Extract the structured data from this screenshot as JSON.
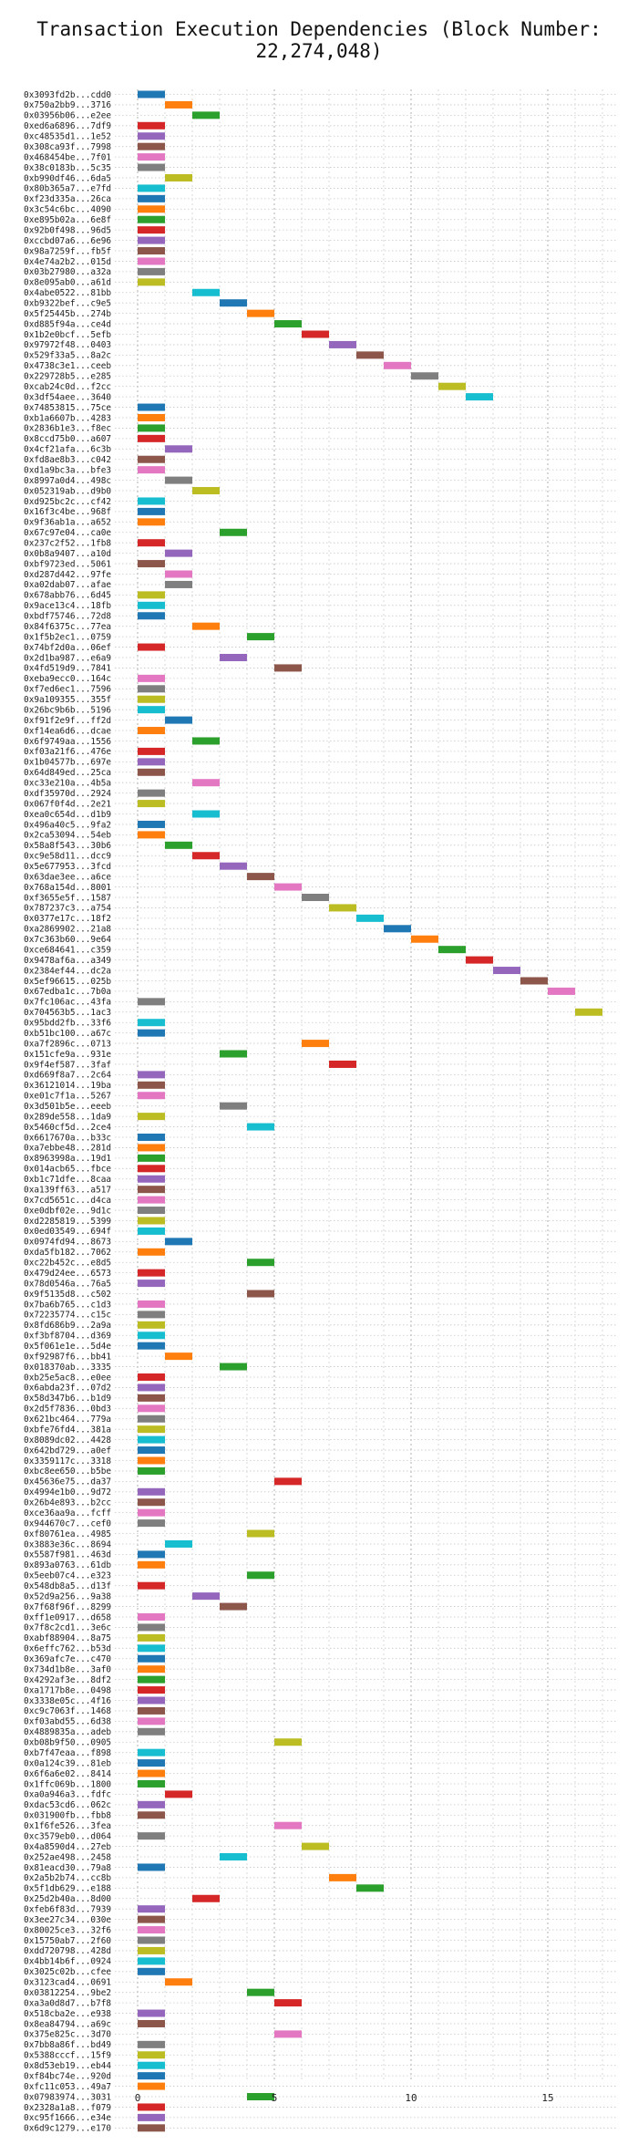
{
  "chart_data": {
    "type": "bar",
    "title": "Transaction Execution Dependencies (Block Number: 22,274,048)",
    "xlabel": "",
    "ylabel": "",
    "xlim": [
      -1.2,
      18.3
    ],
    "xticks": [
      0,
      5,
      10,
      15
    ],
    "grid": true,
    "palette": [
      "#1f77b4",
      "#ff7f0e",
      "#2ca02c",
      "#d62728",
      "#9467bd",
      "#8c564b",
      "#e377c2",
      "#7f7f7f",
      "#bcbd22",
      "#17becf"
    ],
    "transactions": [
      {
        "label": "0x3093fd2b...cdd0",
        "start": 0,
        "color": 0
      },
      {
        "label": "0x750a2bb9...3716",
        "start": 1,
        "color": 1
      },
      {
        "label": "0x03956b06...e2ee",
        "start": 2,
        "color": 2
      },
      {
        "label": "0xed6a6896...7df9",
        "start": 0,
        "color": 3
      },
      {
        "label": "0xc48535d1...1e52",
        "start": 0,
        "color": 4
      },
      {
        "label": "0x308ca93f...7998",
        "start": 0,
        "color": 5
      },
      {
        "label": "0x468454be...7f01",
        "start": 0,
        "color": 6
      },
      {
        "label": "0x38c0183b...5c35",
        "start": 0,
        "color": 7
      },
      {
        "label": "0xb990df46...6da5",
        "start": 1,
        "color": 8
      },
      {
        "label": "0x80b365a7...e7fd",
        "start": 0,
        "color": 9
      },
      {
        "label": "0xf23d335a...26ca",
        "start": 0,
        "color": 0
      },
      {
        "label": "0x3c54c6bc...4090",
        "start": 0,
        "color": 1
      },
      {
        "label": "0xe895b02a...6e8f",
        "start": 0,
        "color": 2
      },
      {
        "label": "0x92b0f498...96d5",
        "start": 0,
        "color": 3
      },
      {
        "label": "0xccbd07a6...6e96",
        "start": 0,
        "color": 4
      },
      {
        "label": "0x98a7259f...fb5f",
        "start": 0,
        "color": 5
      },
      {
        "label": "0x4e74a2b2...015d",
        "start": 0,
        "color": 6
      },
      {
        "label": "0x03b27980...a32a",
        "start": 0,
        "color": 7
      },
      {
        "label": "0x8e095ab0...a61d",
        "start": 0,
        "color": 8
      },
      {
        "label": "0x4abe0522...81bb",
        "start": 2,
        "color": 9
      },
      {
        "label": "0xb9322bef...c9e5",
        "start": 3,
        "color": 0
      },
      {
        "label": "0x5f25445b...274b",
        "start": 4,
        "color": 1
      },
      {
        "label": "0xd885f94a...ce4d",
        "start": 5,
        "color": 2
      },
      {
        "label": "0x1b2e0bcf...5efb",
        "start": 6,
        "color": 3
      },
      {
        "label": "0x97972f48...0403",
        "start": 7,
        "color": 4
      },
      {
        "label": "0x529f33a5...8a2c",
        "start": 8,
        "color": 5
      },
      {
        "label": "0x4738c3e1...ceeb",
        "start": 9,
        "color": 6
      },
      {
        "label": "0x229728b5...e285",
        "start": 10,
        "color": 7
      },
      {
        "label": "0xcab24c0d...f2cc",
        "start": 11,
        "color": 8
      },
      {
        "label": "0x3df54aee...3640",
        "start": 12,
        "color": 9
      },
      {
        "label": "0x74853815...75ce",
        "start": 0,
        "color": 0
      },
      {
        "label": "0xb1a6607b...4283",
        "start": 0,
        "color": 1
      },
      {
        "label": "0x2836b1e3...f8ec",
        "start": 0,
        "color": 2
      },
      {
        "label": "0x8ccd75b0...a607",
        "start": 0,
        "color": 3
      },
      {
        "label": "0x4cf21afa...6c3b",
        "start": 1,
        "color": 4
      },
      {
        "label": "0xfd8ae8b3...c042",
        "start": 0,
        "color": 5
      },
      {
        "label": "0xd1a9bc3a...bfe3",
        "start": 0,
        "color": 6
      },
      {
        "label": "0x8997a0d4...498c",
        "start": 1,
        "color": 7
      },
      {
        "label": "0x052319ab...d9b0",
        "start": 2,
        "color": 8
      },
      {
        "label": "0xd925bc2c...cf42",
        "start": 0,
        "color": 9
      },
      {
        "label": "0x16f3c4be...968f",
        "start": 0,
        "color": 0
      },
      {
        "label": "0x9f36ab1a...a652",
        "start": 0,
        "color": 1
      },
      {
        "label": "0x67c97e04...ca0e",
        "start": 3,
        "color": 2
      },
      {
        "label": "0x237c2f52...1fb8",
        "start": 0,
        "color": 3
      },
      {
        "label": "0x0b8a9407...a10d",
        "start": 1,
        "color": 4
      },
      {
        "label": "0xbf9723ed...5061",
        "start": 0,
        "color": 5
      },
      {
        "label": "0xd287d442...97fe",
        "start": 1,
        "color": 6
      },
      {
        "label": "0xa02dab07...afae",
        "start": 1,
        "color": 7
      },
      {
        "label": "0x678abb76...6d45",
        "start": 0,
        "color": 8
      },
      {
        "label": "0x9ace13c4...18fb",
        "start": 0,
        "color": 9
      },
      {
        "label": "0xbdf75746...72d8",
        "start": 0,
        "color": 0
      },
      {
        "label": "0x84f6375c...77ea",
        "start": 2,
        "color": 1
      },
      {
        "label": "0x1f5b2ec1...0759",
        "start": 4,
        "color": 2
      },
      {
        "label": "0x74bf2d0a...06ef",
        "start": 0,
        "color": 3
      },
      {
        "label": "0x2d1ba987...e6a9",
        "start": 3,
        "color": 4
      },
      {
        "label": "0x4fd519d9...7841",
        "start": 5,
        "color": 5
      },
      {
        "label": "0xeba9ecc0...164c",
        "start": 0,
        "color": 6
      },
      {
        "label": "0xf7ed6ec1...7596",
        "start": 0,
        "color": 7
      },
      {
        "label": "0x9a109355...355f",
        "start": 0,
        "color": 8
      },
      {
        "label": "0x26bc9b6b...5196",
        "start": 0,
        "color": 9
      },
      {
        "label": "0xf91f2e9f...ff2d",
        "start": 1,
        "color": 0
      },
      {
        "label": "0xf14ea6d6...dcae",
        "start": 0,
        "color": 1
      },
      {
        "label": "0x6f9749aa...1556",
        "start": 2,
        "color": 2
      },
      {
        "label": "0xf03a21f6...476e",
        "start": 0,
        "color": 3
      },
      {
        "label": "0x1b04577b...697e",
        "start": 0,
        "color": 4
      },
      {
        "label": "0x64d849ed...25ca",
        "start": 0,
        "color": 5
      },
      {
        "label": "0xc33e210a...4b5a",
        "start": 2,
        "color": 6
      },
      {
        "label": "0xdf35970d...2924",
        "start": 0,
        "color": 7
      },
      {
        "label": "0x067f0f4d...2e21",
        "start": 0,
        "color": 8
      },
      {
        "label": "0xea0c654d...d1b9",
        "start": 2,
        "color": 9
      },
      {
        "label": "0x496a40c5...9fa2",
        "start": 0,
        "color": 0
      },
      {
        "label": "0x2ca53094...54eb",
        "start": 0,
        "color": 1
      },
      {
        "label": "0x58a8f543...30b6",
        "start": 1,
        "color": 2
      },
      {
        "label": "0xc9e58d11...dcc9",
        "start": 2,
        "color": 3
      },
      {
        "label": "0x5e677953...3fcd",
        "start": 3,
        "color": 4
      },
      {
        "label": "0x63dae3ee...a6ce",
        "start": 4,
        "color": 5
      },
      {
        "label": "0x768a154d...8001",
        "start": 5,
        "color": 6
      },
      {
        "label": "0xf3655e5f...1587",
        "start": 6,
        "color": 7
      },
      {
        "label": "0x787237c3...a754",
        "start": 7,
        "color": 8
      },
      {
        "label": "0x0377e17c...18f2",
        "start": 8,
        "color": 9
      },
      {
        "label": "0xa2869902...21a8",
        "start": 9,
        "color": 0
      },
      {
        "label": "0x7c363b60...9e64",
        "start": 10,
        "color": 1
      },
      {
        "label": "0xce684641...c359",
        "start": 11,
        "color": 2
      },
      {
        "label": "0x9478af6a...a349",
        "start": 12,
        "color": 3
      },
      {
        "label": "0x2384ef44...dc2a",
        "start": 13,
        "color": 4
      },
      {
        "label": "0x5ef96615...025b",
        "start": 14,
        "color": 5
      },
      {
        "label": "0x67edba1c...7b0a",
        "start": 15,
        "color": 6
      },
      {
        "label": "0x7fc106ac...43fa",
        "start": 0,
        "color": 7
      },
      {
        "label": "0x704563b5...1ac3",
        "start": 16,
        "color": 8
      },
      {
        "label": "0x95bdd2fb...33f6",
        "start": 0,
        "color": 9
      },
      {
        "label": "0xb51bc100...a67c",
        "start": 0,
        "color": 0
      },
      {
        "label": "0xa7f2896c...0713",
        "start": 6,
        "color": 1
      },
      {
        "label": "0x151cfe9a...931e",
        "start": 3,
        "color": 2
      },
      {
        "label": "0x9f4ef587...3faf",
        "start": 7,
        "color": 3
      },
      {
        "label": "0xd669f8a7...2c64",
        "start": 0,
        "color": 4
      },
      {
        "label": "0x36121014...19ba",
        "start": 0,
        "color": 5
      },
      {
        "label": "0xe01c7f1a...5267",
        "start": 0,
        "color": 6
      },
      {
        "label": "0x3d501b5e...eeeb",
        "start": 3,
        "color": 7
      },
      {
        "label": "0x289de558...1da9",
        "start": 0,
        "color": 8
      },
      {
        "label": "0x5460cf5d...2ce4",
        "start": 4,
        "color": 9
      },
      {
        "label": "0x6617670a...b33c",
        "start": 0,
        "color": 0
      },
      {
        "label": "0xa7ebbe48...281d",
        "start": 0,
        "color": 1
      },
      {
        "label": "0x8963998a...19d1",
        "start": 0,
        "color": 2
      },
      {
        "label": "0x014acb65...fbce",
        "start": 0,
        "color": 3
      },
      {
        "label": "0xb1c71dfe...8caa",
        "start": 0,
        "color": 4
      },
      {
        "label": "0xa139ff63...a517",
        "start": 0,
        "color": 5
      },
      {
        "label": "0x7cd5651c...d4ca",
        "start": 0,
        "color": 6
      },
      {
        "label": "0xe0dbf02e...9d1c",
        "start": 0,
        "color": 7
      },
      {
        "label": "0xd2285819...5399",
        "start": 0,
        "color": 8
      },
      {
        "label": "0x0ed03549...694f",
        "start": 0,
        "color": 9
      },
      {
        "label": "0x0974fd94...8673",
        "start": 1,
        "color": 0
      },
      {
        "label": "0xda5fb182...7062",
        "start": 0,
        "color": 1
      },
      {
        "label": "0xc22b452c...e8d5",
        "start": 4,
        "color": 2
      },
      {
        "label": "0x479d24ee...6573",
        "start": 0,
        "color": 3
      },
      {
        "label": "0x78d0546a...76a5",
        "start": 0,
        "color": 4
      },
      {
        "label": "0x9f5135d8...c502",
        "start": 4,
        "color": 5
      },
      {
        "label": "0x7ba6b765...c1d3",
        "start": 0,
        "color": 6
      },
      {
        "label": "0x72235774...c15c",
        "start": 0,
        "color": 7
      },
      {
        "label": "0x8fd686b9...2a9a",
        "start": 0,
        "color": 8
      },
      {
        "label": "0xf3bf8704...d369",
        "start": 0,
        "color": 9
      },
      {
        "label": "0x5f061e1e...5d4e",
        "start": 0,
        "color": 0
      },
      {
        "label": "0xf92987f6...bb41",
        "start": 1,
        "color": 1
      },
      {
        "label": "0x018370ab...3335",
        "start": 3,
        "color": 2
      },
      {
        "label": "0xb25e5ac8...e0ee",
        "start": 0,
        "color": 3
      },
      {
        "label": "0x6abda23f...07d2",
        "start": 0,
        "color": 4
      },
      {
        "label": "0x58d347b6...b1d9",
        "start": 0,
        "color": 5
      },
      {
        "label": "0x2d5f7836...0bd3",
        "start": 0,
        "color": 6
      },
      {
        "label": "0x621bc464...779a",
        "start": 0,
        "color": 7
      },
      {
        "label": "0xbfe76fd4...381a",
        "start": 0,
        "color": 8
      },
      {
        "label": "0x8089dc02...4428",
        "start": 0,
        "color": 9
      },
      {
        "label": "0x642bd729...a0ef",
        "start": 0,
        "color": 0
      },
      {
        "label": "0x3359117c...3318",
        "start": 0,
        "color": 1
      },
      {
        "label": "0xbc8ee650...b5be",
        "start": 0,
        "color": 2
      },
      {
        "label": "0x45636e75...da37",
        "start": 5,
        "color": 3
      },
      {
        "label": "0x4994e1b0...9d72",
        "start": 0,
        "color": 4
      },
      {
        "label": "0x26b4e893...b2cc",
        "start": 0,
        "color": 5
      },
      {
        "label": "0xce36aa9a...fcff",
        "start": 0,
        "color": 6
      },
      {
        "label": "0x944670c7...cef0",
        "start": 0,
        "color": 7
      },
      {
        "label": "0xf80761ea...4985",
        "start": 4,
        "color": 8
      },
      {
        "label": "0x3883e36c...8694",
        "start": 1,
        "color": 9
      },
      {
        "label": "0x5587f981...463d",
        "start": 0,
        "color": 0
      },
      {
        "label": "0x893a0763...61db",
        "start": 0,
        "color": 1
      },
      {
        "label": "0x5eeb07c4...e323",
        "start": 4,
        "color": 2
      },
      {
        "label": "0x548db8a5...d13f",
        "start": 0,
        "color": 3
      },
      {
        "label": "0x52d9a256...9a38",
        "start": 2,
        "color": 4
      },
      {
        "label": "0x7f68f96f...8299",
        "start": 3,
        "color": 5
      },
      {
        "label": "0xff1e0917...d658",
        "start": 0,
        "color": 6
      },
      {
        "label": "0x7f8c2cd1...3e6c",
        "start": 0,
        "color": 7
      },
      {
        "label": "0xabf88904...8a75",
        "start": 0,
        "color": 8
      },
      {
        "label": "0x6effc762...b53d",
        "start": 0,
        "color": 9
      },
      {
        "label": "0x369afc7e...c470",
        "start": 0,
        "color": 0
      },
      {
        "label": "0x734d1b8e...3af0",
        "start": 0,
        "color": 1
      },
      {
        "label": "0x4292af3e...8df2",
        "start": 0,
        "color": 2
      },
      {
        "label": "0xa1717b8e...0498",
        "start": 0,
        "color": 3
      },
      {
        "label": "0x3338e05c...4f16",
        "start": 0,
        "color": 4
      },
      {
        "label": "0xc9c7063f...1468",
        "start": 0,
        "color": 5
      },
      {
        "label": "0xf03abd55...6d38",
        "start": 0,
        "color": 6
      },
      {
        "label": "0x4889835a...adeb",
        "start": 0,
        "color": 7
      },
      {
        "label": "0xb08b9f50...0905",
        "start": 5,
        "color": 8
      },
      {
        "label": "0xb7f47eaa...f898",
        "start": 0,
        "color": 9
      },
      {
        "label": "0x0a124c39...81eb",
        "start": 0,
        "color": 0
      },
      {
        "label": "0x6f6a6e02...8414",
        "start": 0,
        "color": 1
      },
      {
        "label": "0x1ffc069b...1800",
        "start": 0,
        "color": 2
      },
      {
        "label": "0xa0a946a3...fdfc",
        "start": 1,
        "color": 3
      },
      {
        "label": "0xdac53cd6...062c",
        "start": 0,
        "color": 4
      },
      {
        "label": "0x031900fb...fbb8",
        "start": 0,
        "color": 5
      },
      {
        "label": "0x1f6fe526...3fea",
        "start": 5,
        "color": 6
      },
      {
        "label": "0xc3579eb0...d064",
        "start": 0,
        "color": 7
      },
      {
        "label": "0x4a8590d4...27eb",
        "start": 6,
        "color": 8
      },
      {
        "label": "0x252ae498...2458",
        "start": 3,
        "color": 9
      },
      {
        "label": "0x81eacd30...79a8",
        "start": 0,
        "color": 0
      },
      {
        "label": "0x2a5b2b74...cc8b",
        "start": 7,
        "color": 1
      },
      {
        "label": "0x5f1db629...e188",
        "start": 8,
        "color": 2
      },
      {
        "label": "0x25d2b40a...8d00",
        "start": 2,
        "color": 3
      },
      {
        "label": "0xfeb6f83d...7939",
        "start": 0,
        "color": 4
      },
      {
        "label": "0x3ee27c34...030e",
        "start": 0,
        "color": 5
      },
      {
        "label": "0x80025ce3...32f6",
        "start": 0,
        "color": 6
      },
      {
        "label": "0x15750ab7...2f60",
        "start": 0,
        "color": 7
      },
      {
        "label": "0xdd720798...428d",
        "start": 0,
        "color": 8
      },
      {
        "label": "0x4bb14b6f...0924",
        "start": 0,
        "color": 9
      },
      {
        "label": "0x3025c02b...cfee",
        "start": 0,
        "color": 0
      },
      {
        "label": "0x3123cad4...0691",
        "start": 1,
        "color": 1
      },
      {
        "label": "0x03812254...9be2",
        "start": 4,
        "color": 2
      },
      {
        "label": "0xa3a0d8d7...b7f8",
        "start": 5,
        "color": 3
      },
      {
        "label": "0x518cba2e...e938",
        "start": 0,
        "color": 4
      },
      {
        "label": "0x8ea84794...a69c",
        "start": 0,
        "color": 5
      },
      {
        "label": "0x375e825c...3d70",
        "start": 5,
        "color": 6
      },
      {
        "label": "0x7bb8a86f...bd49",
        "start": 0,
        "color": 7
      },
      {
        "label": "0x5388cccf...15f9",
        "start": 0,
        "color": 8
      },
      {
        "label": "0x8d53eb19...eb44",
        "start": 0,
        "color": 9
      },
      {
        "label": "0xf84bc74e...920d",
        "start": 0,
        "color": 0
      },
      {
        "label": "0xfc11c053...49a7",
        "start": 0,
        "color": 1
      },
      {
        "label": "0x07983974...3031",
        "start": 4,
        "color": 2
      },
      {
        "label": "0x2328a1a8...f079",
        "start": 0,
        "color": 3
      },
      {
        "label": "0xc95f1666...e34e",
        "start": 0,
        "color": 4
      },
      {
        "label": "0x6d9c1279...e170",
        "start": 0,
        "color": 5
      }
    ]
  }
}
